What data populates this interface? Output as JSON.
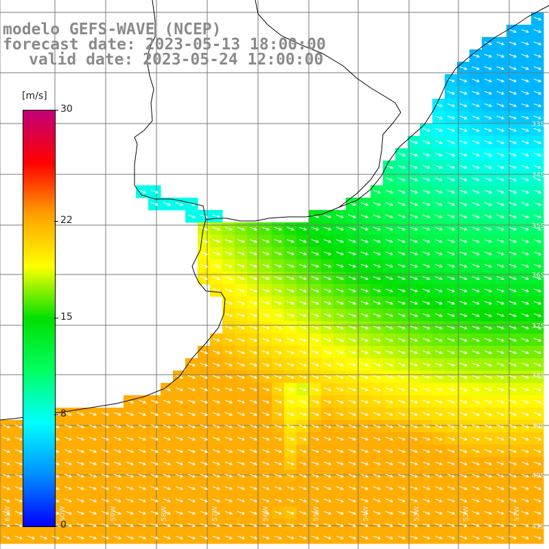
{
  "title": {
    "line1": "modelo GEFS-WAVE (NCEP)",
    "line2": "forecast date: 2023-05-13 18:00:00",
    "line3": "valid date: 2023-05-24 12:00:00"
  },
  "colorbar": {
    "units": "[m/s]",
    "ticks": [
      "30",
      "22",
      "15",
      "8",
      "0"
    ],
    "tick_values": [
      30,
      22,
      15,
      8,
      0
    ],
    "colors": [
      "#0000ff",
      "#0090ff",
      "#00ffff",
      "#00ff60",
      "#00e000",
      "#ffff00",
      "#ffa000",
      "#ff0000",
      "#c0007a"
    ]
  },
  "map": {
    "lon_labels": [
      "61W",
      "60W",
      "59W",
      "58W",
      "57W",
      "56W",
      "55W",
      "54W",
      "53W",
      "52W",
      "51W"
    ],
    "lat_labels": [
      "33S",
      "34S",
      "35S",
      "36S",
      "37S",
      "38S",
      "39S",
      "40S",
      "41S"
    ],
    "arrow_direction": "toward east-southeast"
  }
}
